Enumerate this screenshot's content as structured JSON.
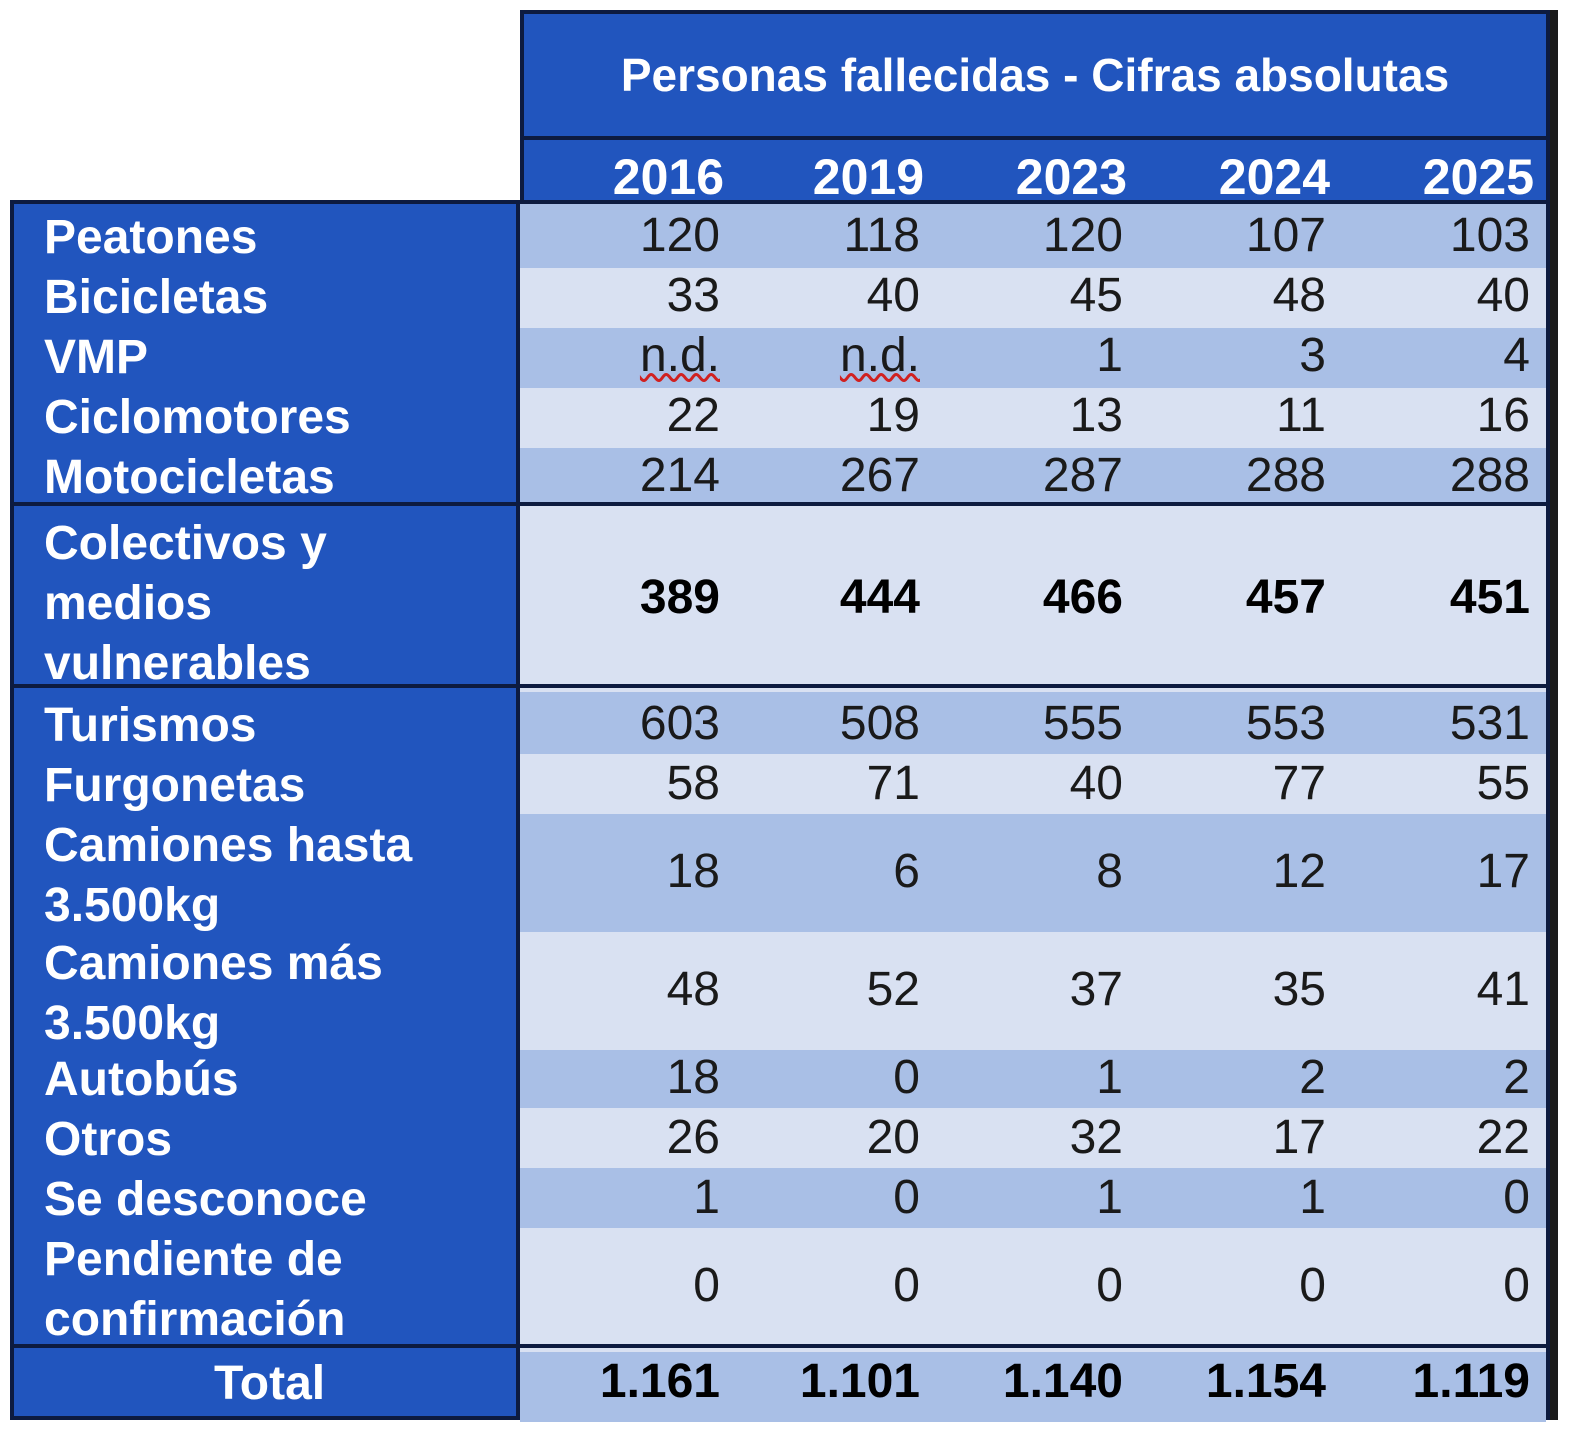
{
  "chart_data": {
    "type": "table",
    "title": "Personas fallecidas - Cifras absolutas",
    "columns": [
      "2016",
      "2019",
      "2023",
      "2024",
      "2025"
    ],
    "rows": [
      {
        "label": "Peatones",
        "values": [
          "120",
          "118",
          "120",
          "107",
          "103"
        ]
      },
      {
        "label": "Bicicletas",
        "values": [
          "33",
          "40",
          "45",
          "48",
          "40"
        ]
      },
      {
        "label": "VMP",
        "values": [
          "n.d.",
          "n.d.",
          "1",
          "3",
          "4"
        ]
      },
      {
        "label": "Ciclomotores",
        "values": [
          "22",
          "19",
          "13",
          "11",
          "16"
        ]
      },
      {
        "label": "Motocicletas",
        "values": [
          "214",
          "267",
          "287",
          "288",
          "288"
        ]
      },
      {
        "label": "Colectivos y medios vulnerables",
        "values": [
          "389",
          "444",
          "466",
          "457",
          "451"
        ]
      },
      {
        "label": "Turismos",
        "values": [
          "603",
          "508",
          "555",
          "553",
          "531"
        ]
      },
      {
        "label": "Furgonetas",
        "values": [
          "58",
          "71",
          "40",
          "77",
          "55"
        ]
      },
      {
        "label": "Camiones hasta 3.500kg",
        "values": [
          "18",
          "6",
          "8",
          "12",
          "17"
        ]
      },
      {
        "label": "Camiones más 3.500kg",
        "values": [
          "48",
          "52",
          "37",
          "35",
          "41"
        ]
      },
      {
        "label": "Autobús",
        "values": [
          "18",
          "0",
          "1",
          "2",
          "2"
        ]
      },
      {
        "label": "Otros",
        "values": [
          "26",
          "20",
          "32",
          "17",
          "22"
        ]
      },
      {
        "label": "Se desconoce",
        "values": [
          "1",
          "0",
          "1",
          "1",
          "0"
        ]
      },
      {
        "label": "Pendiente de confirmación",
        "values": [
          "0",
          "0",
          "0",
          "0",
          "0"
        ]
      },
      {
        "label": "Total",
        "values": [
          "1.161",
          "1.101",
          "1.140",
          "1.154",
          "1.119"
        ]
      }
    ]
  },
  "colors": {
    "header_blue": "#2155be",
    "band_blue": "#a9bfe6",
    "light_blue": "#d9e1f2",
    "border": "#0d1b40"
  }
}
